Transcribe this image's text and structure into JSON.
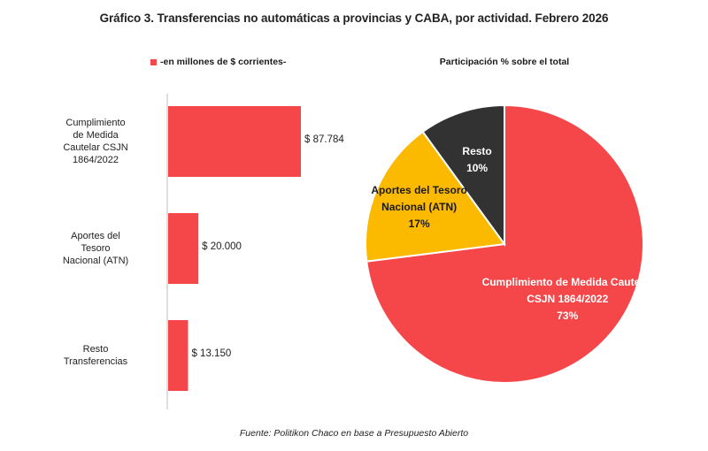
{
  "title": "Gráfico 3. Transferencias no automáticas a provincias y CABA, por actividad. Febrero 2026",
  "source": "Fuente: Politikon Chaco en base a Presupuesto Abierto",
  "colors": {
    "bar": "#f5474a",
    "pie": [
      "#f5474a",
      "#fbb900",
      "#333232"
    ]
  },
  "chart_data": [
    {
      "type": "bar",
      "orientation": "horizontal",
      "legend": "-en millones de $ corrientes-",
      "categories": [
        "Cumplimiento de Medida Cautelar CSJN 1864/2022",
        "Aportes del Tesoro Nacional (ATN)",
        "Resto Transferencias"
      ],
      "category_lines": [
        [
          "Cumplimiento",
          "de Medida",
          "Cautelar CSJN",
          "1864/2022"
        ],
        [
          "Aportes del",
          "Tesoro",
          "Nacional (ATN)"
        ],
        [
          "Resto",
          "Transferencias"
        ]
      ],
      "values": [
        87784,
        20000,
        13150
      ],
      "value_labels": [
        "$ 87.784",
        "$ 20.000",
        "$ 13.150"
      ]
    },
    {
      "type": "pie",
      "title": "Participación % sobre el total",
      "slices": [
        {
          "label": "Cumplimiento de Medida Cautelar CSJN 1864/2022",
          "lines": [
            "Cumplimiento de Medida Cautelar",
            "CSJN 1864/2022"
          ],
          "value": 73,
          "pct_label": "73%",
          "text_color": "#ffffff"
        },
        {
          "label": "Aportes del Tesoro Nacional (ATN)",
          "lines": [
            "Aportes del Tesoro",
            "Nacional (ATN)"
          ],
          "value": 17,
          "pct_label": "17%",
          "text_color": "#1a1a1a"
        },
        {
          "label": "Resto",
          "lines": [
            "Resto"
          ],
          "value": 10,
          "pct_label": "10%",
          "text_color": "#ffffff"
        }
      ]
    }
  ]
}
